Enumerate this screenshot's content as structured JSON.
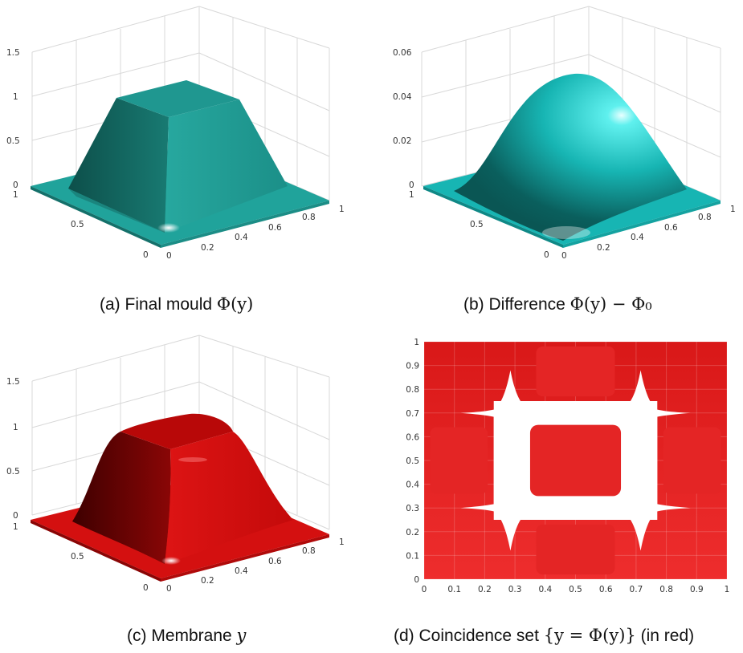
{
  "colors": {
    "mould_teal": "#1f9e97",
    "difference_cyan": "#14b8b8",
    "membrane_red": "#d21010",
    "coincidence_red": "#e42525",
    "background": "#ffffff"
  },
  "figure": {
    "captions": {
      "a": {
        "prefix": "(a) Final mould ",
        "math": "Φ(y)",
        "suffix": ""
      },
      "b": {
        "prefix": "(b) Difference ",
        "math": "Φ(y) − Φ₀",
        "suffix": ""
      },
      "c": {
        "prefix": "(c) Membrane ",
        "math": "y",
        "suffix": ""
      },
      "d": {
        "prefix": "(d) Coincidence set ",
        "math": "{y = Φ(y)}",
        "suffix": " (in red)"
      }
    }
  },
  "chart_data": [
    {
      "id": "a",
      "type": "surface3d",
      "surface": "plateau",
      "color": "teal",
      "plateau_height": 1.0,
      "z_ticks": [
        "0",
        "0.5",
        "1",
        "1.5"
      ],
      "zlim": [
        0,
        1.5
      ],
      "x_ticks": [
        "0",
        "0.2",
        "0.4",
        "0.6",
        "0.8",
        "1"
      ],
      "y_ticks": [
        "0",
        "0.5",
        "1"
      ],
      "grid": true
    },
    {
      "id": "b",
      "type": "surface3d",
      "surface": "bump",
      "color": "cyan",
      "peak": 0.05,
      "z_ticks": [
        "0",
        "0.02",
        "0.04",
        "0.06"
      ],
      "zlim": [
        0,
        0.06
      ],
      "x_ticks": [
        "0",
        "0.2",
        "0.4",
        "0.6",
        "0.8",
        "1"
      ],
      "y_ticks": [
        "0",
        "0.5",
        "1"
      ],
      "grid": true
    },
    {
      "id": "c",
      "type": "surface3d",
      "surface": "plateau",
      "color": "red",
      "plateau_height": 1.05,
      "z_ticks": [
        "0",
        "0.5",
        "1",
        "1.5"
      ],
      "zlim": [
        0,
        1.5
      ],
      "x_ticks": [
        "0",
        "0.2",
        "0.4",
        "0.6",
        "0.8",
        "1"
      ],
      "y_ticks": [
        "0",
        "0.5",
        "1"
      ],
      "grid": true
    },
    {
      "id": "d",
      "type": "heatmap",
      "description_of_set": "red = coincidence set, white = non-coincidence",
      "xlim": [
        0,
        1
      ],
      "ylim": [
        0,
        1
      ],
      "x_ticks": [
        "0",
        "0.1",
        "0.2",
        "0.3",
        "0.4",
        "0.5",
        "0.6",
        "0.7",
        "0.8",
        "0.9",
        "1"
      ],
      "y_ticks": [
        "0",
        "0.1",
        "0.2",
        "0.3",
        "0.4",
        "0.5",
        "0.6",
        "0.7",
        "0.8",
        "0.9",
        "1"
      ],
      "white_lines_x": [
        0.3,
        0.7
      ],
      "white_lines_y": [
        0.3,
        0.7
      ],
      "central_red_square": [
        0.35,
        0.65
      ],
      "grid": true
    }
  ]
}
